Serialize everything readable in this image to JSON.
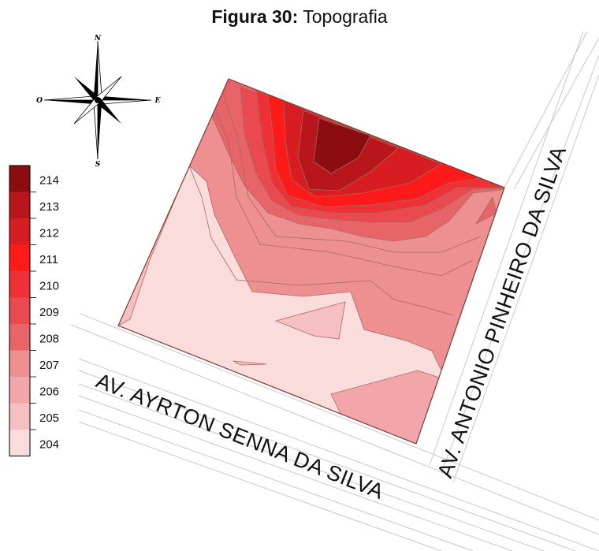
{
  "caption": {
    "label": "Figura 30:",
    "title": "Topografia"
  },
  "compass": {
    "north": "N",
    "south": "S",
    "east": "E",
    "west": "O"
  },
  "legend": {
    "levels": [
      {
        "value": "214",
        "color": "#8b0d12"
      },
      {
        "value": "213",
        "color": "#b8161b"
      },
      {
        "value": "212",
        "color": "#d81d22"
      },
      {
        "value": "211",
        "color": "#ff1a1a"
      },
      {
        "value": "210",
        "color": "#ef3036"
      },
      {
        "value": "209",
        "color": "#ea4a4f"
      },
      {
        "value": "208",
        "color": "#e76468"
      },
      {
        "value": "207",
        "color": "#ee8f92"
      },
      {
        "value": "206",
        "color": "#f2a6a9"
      },
      {
        "value": "205",
        "color": "#f6c0c2"
      },
      {
        "value": "204",
        "color": "#fadcdd"
      }
    ]
  },
  "streets": {
    "south": "AV. AYRTON SENNA DA SILVA",
    "east": "AV. ANTONIO PINHEIRO DA SILVA"
  }
}
